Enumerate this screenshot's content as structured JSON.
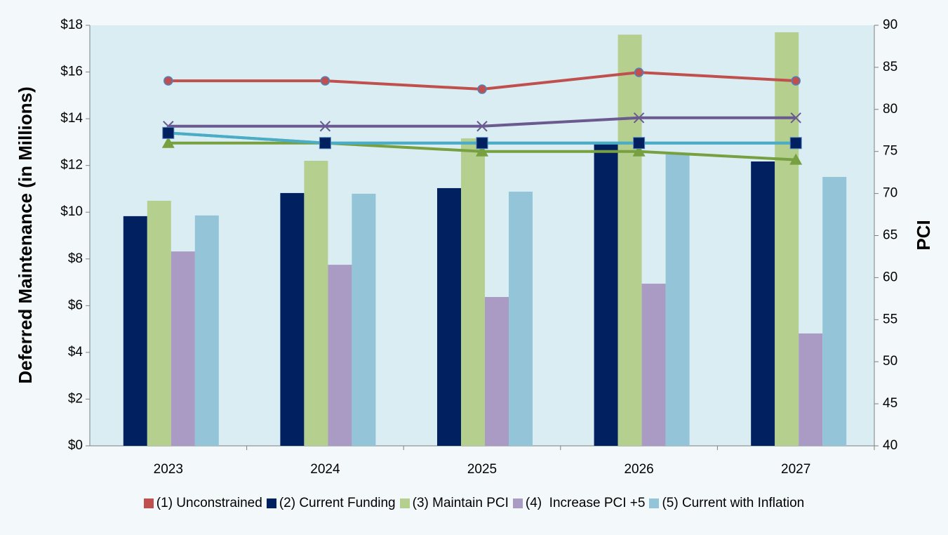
{
  "chart_data": {
    "type": "bar-line",
    "y_label": "Deferred Maintenance (in Millions)",
    "y2_label": "PCI",
    "categories": [
      "2023",
      "2024",
      "2025",
      "2026",
      "2027"
    ],
    "ylim": [
      0,
      18
    ],
    "yticks": [
      {
        "value": 0,
        "label": "$0"
      },
      {
        "value": 2,
        "label": "$2"
      },
      {
        "value": 4,
        "label": "$4"
      },
      {
        "value": 6,
        "label": "$6"
      },
      {
        "value": 8,
        "label": "$8"
      },
      {
        "value": 10,
        "label": "$10"
      },
      {
        "value": 12,
        "label": "$12"
      },
      {
        "value": 14,
        "label": "$14"
      },
      {
        "value": 16,
        "label": "$16"
      },
      {
        "value": 18,
        "label": "$18"
      }
    ],
    "y2lim": [
      40,
      90
    ],
    "y2ticks": [
      40,
      45,
      50,
      55,
      60,
      65,
      70,
      75,
      80,
      85,
      90
    ],
    "series": [
      {
        "name": "(1) Unconstrained",
        "color": "#c0504d",
        "line_color": "#c0504d",
        "marker": "circle",
        "axis": "y2",
        "values": [
          83.4,
          83.4,
          82.4,
          84.4,
          83.4
        ]
      },
      {
        "name": "(2) Current Funding",
        "color": "#002060",
        "line_color": "#4bacc6",
        "marker": "square",
        "axis": "y2",
        "values": [
          77.2,
          76,
          76,
          76,
          76
        ],
        "bar_values": [
          9.83,
          10.82,
          11.03,
          12.92,
          12.17
        ]
      },
      {
        "name": "(3) Maintain PCI",
        "color": "#b5cf8f",
        "line_color": "#77a040",
        "marker": "triangle",
        "axis": "y2",
        "values": [
          76,
          76,
          75,
          75,
          74
        ],
        "bar_values": [
          10.49,
          12.2,
          13.16,
          17.6,
          17.7
        ]
      },
      {
        "name": "(4)  Increase PCI +5",
        "color": "#a99bc4",
        "line_color": "#6a5a90",
        "marker": "x",
        "axis": "y2",
        "values": [
          78,
          78,
          78,
          79,
          79
        ],
        "bar_values": [
          8.32,
          7.75,
          6.37,
          6.94,
          4.81
        ]
      },
      {
        "name": "(5) Current with Inflation",
        "color": "#93c4d7",
        "line_color": "#4bacc6",
        "marker": "star",
        "axis": "y2",
        "values": [
          77.2,
          76,
          76,
          76,
          76
        ],
        "bar_values": [
          9.86,
          10.79,
          10.88,
          12.47,
          11.51
        ]
      }
    ]
  }
}
